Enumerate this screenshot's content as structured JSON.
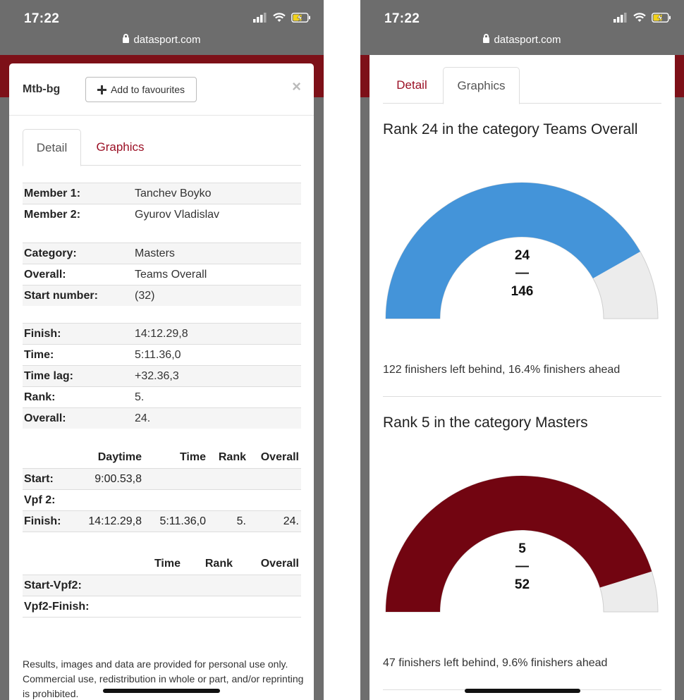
{
  "status_bar": {
    "time": "17:22",
    "url": "datasport.com"
  },
  "colors": {
    "brand_red": "#7d1018",
    "link_red": "#9b1025",
    "gauge_blue": "#4494d9",
    "gauge_red": "#720511",
    "gauge_track": "#ececec"
  },
  "icons": [
    "lock-icon",
    "signal-icon",
    "wifi-icon",
    "battery-charging-icon",
    "plus-icon",
    "close-icon"
  ],
  "left": {
    "modal_title": "Mtb-bg",
    "fav_button": "Add to favourites",
    "close": "×",
    "tabs": {
      "detail": "Detail",
      "graphics": "Graphics"
    },
    "members": [
      {
        "key": "Member 1:",
        "value": "Tanchev Boyko"
      },
      {
        "key": "Member 2:",
        "value": "Gyurov Vladislav"
      }
    ],
    "category": [
      {
        "key": "Category:",
        "value": "Masters"
      },
      {
        "key": "Overall:",
        "value": "Teams Overall"
      },
      {
        "key": "Start number:",
        "value": "(32)"
      }
    ],
    "results": [
      {
        "key": "Finish:",
        "value": "14:12.29,8"
      },
      {
        "key": "Time:",
        "value": "5:11.36,0"
      },
      {
        "key": "Time lag:",
        "value": "+32.36,3"
      },
      {
        "key": "Rank:",
        "value": "5."
      },
      {
        "key": "Overall:",
        "value": "24."
      }
    ],
    "splits": {
      "headers": [
        "",
        "Daytime",
        "Time",
        "Rank",
        "Overall"
      ],
      "rows": [
        [
          "Start:",
          "9:00.53,8",
          "",
          "",
          ""
        ],
        [
          "Vpf 2:",
          "",
          "",
          "",
          ""
        ],
        [
          "Finish:",
          "14:12.29,8",
          "5:11.36,0",
          "5.",
          "24."
        ]
      ]
    },
    "segments": {
      "headers": [
        "",
        "Time",
        "Rank",
        "Overall"
      ],
      "rows": [
        [
          "Start-Vpf2:",
          "",
          "",
          ""
        ],
        [
          "Vpf2-Finish:",
          "",
          "",
          ""
        ]
      ]
    },
    "disclaimer": "Results, images and data are provided for personal use only. Commercial use, redistribution in whole or part, and/or reprinting is prohibited."
  },
  "right": {
    "tabs": {
      "detail": "Detail",
      "graphics": "Graphics"
    },
    "charts": [
      {
        "title": "Rank 24 in the category Teams Overall",
        "rank": "24",
        "sep": "—",
        "total": "146",
        "summary": "122 finishers left behind, 16.4% finishers ahead"
      },
      {
        "title": "Rank 5 in the category Masters",
        "rank": "5",
        "sep": "—",
        "total": "52",
        "summary": "47 finishers left behind, 9.6% finishers ahead"
      }
    ]
  },
  "chart_data": [
    {
      "type": "gauge",
      "title": "Rank 24 in the category Teams Overall",
      "rank": 24,
      "total": 146,
      "behind": 122,
      "ahead_percent": 16.4,
      "filled_fraction": 0.836,
      "color": "#4494d9"
    },
    {
      "type": "gauge",
      "title": "Rank 5 in the category Masters",
      "rank": 5,
      "total": 52,
      "behind": 47,
      "ahead_percent": 9.6,
      "filled_fraction": 0.904,
      "color": "#720511"
    }
  ]
}
